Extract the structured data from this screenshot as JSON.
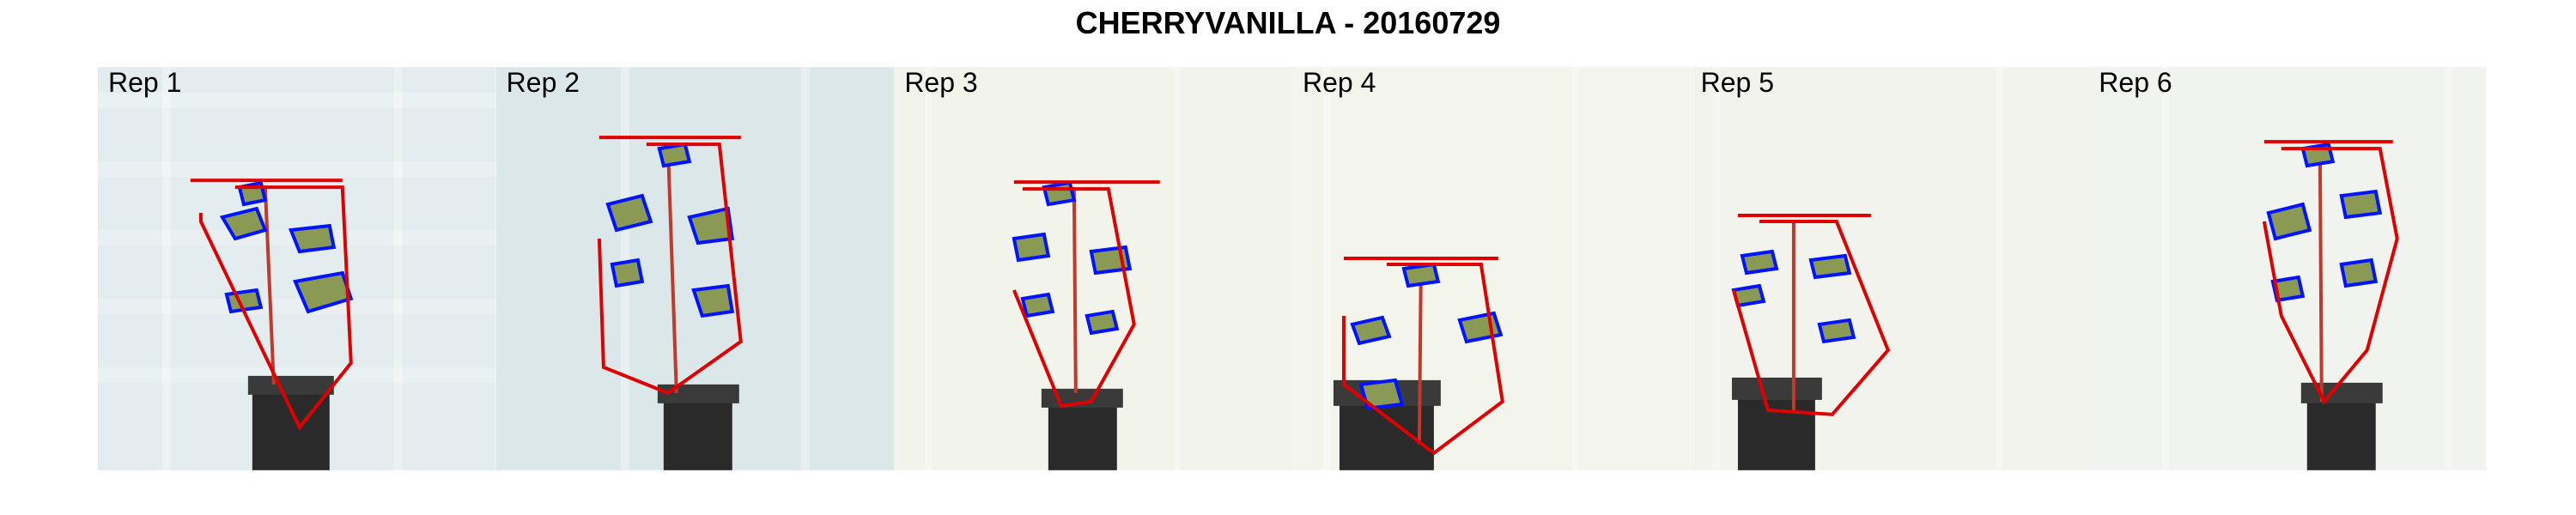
{
  "title": "CHERRYVANILLA - 20160729",
  "panels": [
    {
      "label": "Rep 1",
      "bg": [
        "#e3ecee",
        "#d4e0e3"
      ]
    },
    {
      "label": "Rep 2",
      "bg": [
        "#dce7ea",
        "#cfdfe3"
      ]
    },
    {
      "label": "Rep 3",
      "bg": [
        "#f2f3ea",
        "#eef0e4"
      ]
    },
    {
      "label": "Rep 4",
      "bg": [
        "#f3f4ec",
        "#eef1e6"
      ]
    },
    {
      "label": "Rep 5",
      "bg": [
        "#f1f3ec",
        "#eceee6"
      ]
    },
    {
      "label": "Rep 6",
      "bg": [
        "#f0f3ee",
        "#e8ece6"
      ]
    }
  ],
  "colors": {
    "hull": "#e00000",
    "outline": "#0014ff",
    "leaf": "#8a9a55",
    "pot": "#2a2a2a",
    "stem": "#c0392b"
  }
}
